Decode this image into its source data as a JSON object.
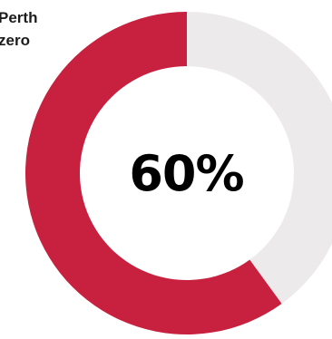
{
  "chart_data": {
    "type": "pie",
    "label_lines": [
      "Perth",
      "zero"
    ],
    "center_label": "60%",
    "slices": [
      {
        "value": 60,
        "color": "#c8213f"
      },
      {
        "value": 40,
        "color": "#edeaeb"
      }
    ]
  }
}
